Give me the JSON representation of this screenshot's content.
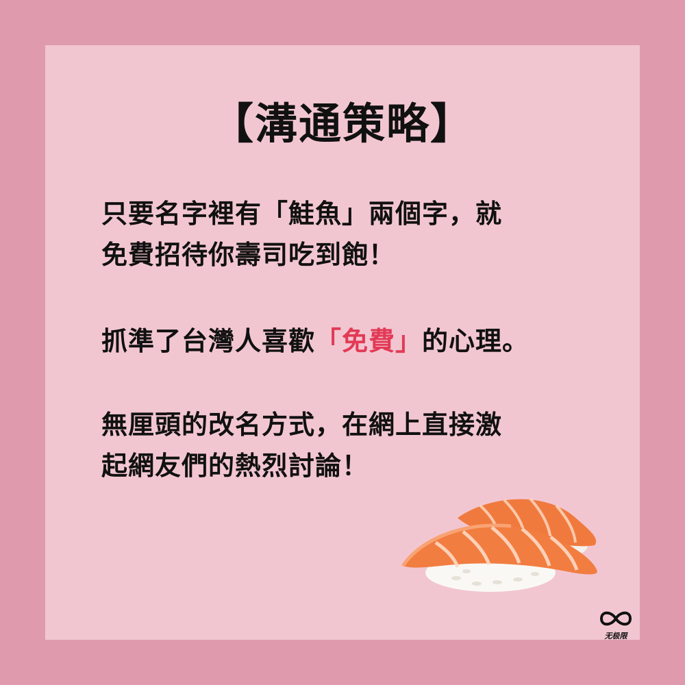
{
  "title": "【溝通策略】",
  "paragraph1": {
    "line1": "只要名字裡有「鮭魚」兩個字，就",
    "line2": "免費招待你壽司吃到飽！"
  },
  "paragraph2": {
    "before": "抓準了台灣人喜歡",
    "highlight": "「免費」",
    "after": "的心理。"
  },
  "paragraph3": {
    "line1": "無厘頭的改名方式，在網上直接激",
    "line2": "起網友們的熱烈討論！"
  },
  "image": {
    "subject": "salmon-nigiri-icon"
  },
  "logo": {
    "icon": "infinity-icon",
    "text": "无极限"
  },
  "colors": {
    "outer_background": "#e09aae",
    "inner_background": "#f2c6d1",
    "text": "#111111",
    "highlight": "#e23a56"
  }
}
